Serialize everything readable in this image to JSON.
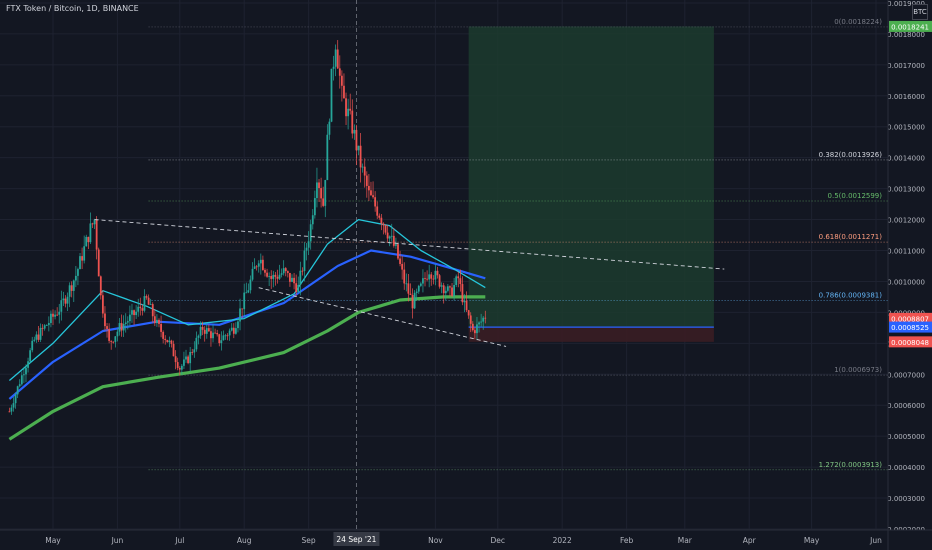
{
  "header": {
    "symbol": "FTX Token / Bitcoin, 1D, BINANCE",
    "currency": "BTC"
  },
  "colors": {
    "bg": "#131722",
    "grid": "#1e2230",
    "up": "#26a69a",
    "down": "#ef5350",
    "ma_teal": "#26c6da",
    "ma_blue": "#2962ff",
    "ma_green": "#4caf50",
    "target_zone": "#1c3b2e",
    "stop_zone": "#3a1d24"
  },
  "chart_data": {
    "type": "candlestick",
    "y_scale": "linear",
    "ylim": [
      0.0002,
      0.002
    ],
    "y_ticks": [
      "0.0019000",
      "0.0018000",
      "0.0017000",
      "0.0016000",
      "0.0015000",
      "0.0014000",
      "0.0013000",
      "0.0012000",
      "0.0011000",
      "0.0010000",
      "0.0009000",
      "0.0008000",
      "0.0007000",
      "0.0006000",
      "0.0005000",
      "0.0004000",
      "0.0003000",
      "0.0002000"
    ],
    "y_tick_values": [
      0.0019,
      0.0018,
      0.0017,
      0.0016,
      0.0015,
      0.0014,
      0.0013,
      0.0012,
      0.0011,
      0.001,
      0.0009,
      0.0008,
      0.0007,
      0.0006,
      0.0005,
      0.0004,
      0.0003,
      0.0002
    ],
    "x_ticks": [
      "May",
      "Jun",
      "Jul",
      "Aug",
      "Sep",
      "24 Sep '21",
      "Nov",
      "Dec",
      "2022",
      "Feb",
      "Mar",
      "Apr",
      "May",
      "Jun"
    ],
    "x_tick_dates": [
      "2021-05-01",
      "2021-06-01",
      "2021-07-01",
      "2021-08-01",
      "2021-09-01",
      "2021-09-24",
      "2021-11-01",
      "2021-12-01",
      "2022-01-01",
      "2022-02-01",
      "2022-03-01",
      "2022-04-01",
      "2022-05-01",
      "2022-06-01"
    ],
    "crosshair_date": "2021-09-24",
    "price_path": [
      [
        "2021-04-10",
        0.00058
      ],
      [
        "2021-04-22",
        0.00081
      ],
      [
        "2021-05-05",
        0.00092
      ],
      [
        "2021-05-12",
        0.00102
      ],
      [
        "2021-05-19",
        0.00117
      ],
      [
        "2021-05-21",
        0.0012
      ],
      [
        "2021-05-24",
        0.00095
      ],
      [
        "2021-05-28",
        0.0008
      ],
      [
        "2021-06-02",
        0.00085
      ],
      [
        "2021-06-10",
        0.0009
      ],
      [
        "2021-06-15",
        0.00094
      ],
      [
        "2021-06-20",
        0.00086
      ],
      [
        "2021-06-26",
        0.0008
      ],
      [
        "2021-07-01",
        0.00072
      ],
      [
        "2021-07-05",
        0.00075
      ],
      [
        "2021-07-12",
        0.00085
      ],
      [
        "2021-07-20",
        0.00081
      ],
      [
        "2021-07-27",
        0.00085
      ],
      [
        "2021-08-03",
        0.00098
      ],
      [
        "2021-08-08",
        0.00108
      ],
      [
        "2021-08-14",
        0.00101
      ],
      [
        "2021-08-20",
        0.00103
      ],
      [
        "2021-08-27",
        0.00098
      ],
      [
        "2021-09-02",
        0.00118
      ],
      [
        "2021-09-05",
        0.00135
      ],
      [
        "2021-09-08",
        0.00125
      ],
      [
        "2021-09-12",
        0.00165
      ],
      [
        "2021-09-14",
        0.00178
      ],
      [
        "2021-09-17",
        0.0016
      ],
      [
        "2021-09-22",
        0.0015
      ],
      [
        "2021-09-26",
        0.00138
      ],
      [
        "2021-09-30",
        0.00128
      ],
      [
        "2021-10-05",
        0.00122
      ],
      [
        "2021-10-09",
        0.00116
      ],
      [
        "2021-10-13",
        0.0011
      ],
      [
        "2021-10-17",
        0.001
      ],
      [
        "2021-10-21",
        0.00093
      ],
      [
        "2021-10-25",
        0.00098
      ],
      [
        "2021-10-29",
        0.00104
      ],
      [
        "2021-11-03",
        0.001
      ],
      [
        "2021-11-08",
        0.00096
      ],
      [
        "2021-11-12",
        0.00101
      ],
      [
        "2021-11-15",
        0.00092
      ],
      [
        "2021-11-19",
        0.00084
      ],
      [
        "2021-11-22",
        0.00086
      ],
      [
        "2021-11-25",
        0.00089
      ]
    ],
    "ma_fast": [
      [
        "2021-04-10",
        0.00068
      ],
      [
        "2021-05-01",
        0.0008
      ],
      [
        "2021-05-25",
        0.00097
      ],
      [
        "2021-06-15",
        0.00092
      ],
      [
        "2021-07-05",
        0.00086
      ],
      [
        "2021-08-01",
        0.00088
      ],
      [
        "2021-08-25",
        0.00096
      ],
      [
        "2021-09-10",
        0.00112
      ],
      [
        "2021-09-25",
        0.0012
      ],
      [
        "2021-10-10",
        0.00118
      ],
      [
        "2021-10-25",
        0.0011
      ],
      [
        "2021-11-10",
        0.00104
      ],
      [
        "2021-11-25",
        0.00098
      ]
    ],
    "ma_mid": [
      [
        "2021-04-10",
        0.00062
      ],
      [
        "2021-05-01",
        0.00074
      ],
      [
        "2021-05-25",
        0.00084
      ],
      [
        "2021-06-20",
        0.00087
      ],
      [
        "2021-07-20",
        0.00086
      ],
      [
        "2021-08-20",
        0.00093
      ],
      [
        "2021-09-15",
        0.00105
      ],
      [
        "2021-10-01",
        0.0011
      ],
      [
        "2021-10-20",
        0.00108
      ],
      [
        "2021-11-10",
        0.00104
      ],
      [
        "2021-11-25",
        0.00101
      ]
    ],
    "ma_slow": [
      [
        "2021-04-10",
        0.00049
      ],
      [
        "2021-05-01",
        0.00058
      ],
      [
        "2021-05-25",
        0.00066
      ],
      [
        "2021-06-20",
        0.00069
      ],
      [
        "2021-07-20",
        0.00072
      ],
      [
        "2021-08-20",
        0.00077
      ],
      [
        "2021-09-10",
        0.00084
      ],
      [
        "2021-09-25",
        0.0009
      ],
      [
        "2021-10-15",
        0.00094
      ],
      [
        "2021-11-05",
        0.00095
      ],
      [
        "2021-11-25",
        0.00095
      ]
    ],
    "fib_levels": [
      {
        "label": "0(0.0018224)",
        "value": 0.0018224,
        "color": "#787b86"
      },
      {
        "label": "0.382(0.0013926)",
        "value": 0.0013926,
        "color": "#d1d4dc"
      },
      {
        "label": "0.5(0.0012599)",
        "value": 0.0012599,
        "color": "#66bb6a"
      },
      {
        "label": "0.618(0.0011271)",
        "value": 0.0011271,
        "color": "#ff9e80"
      },
      {
        "label": "0.786(0.0009381)",
        "value": 0.0009381,
        "color": "#64b5f6"
      },
      {
        "label": "1(0.0006973)",
        "value": 0.0006973,
        "color": "#787b86"
      },
      {
        "label": "1.272(0.0003913)",
        "value": 0.0003913,
        "color": "#81c784"
      }
    ],
    "fib_start_date": "2021-06-16",
    "trendlines": [
      {
        "from": [
          "2021-05-21",
          0.0012
        ],
        "to": [
          "2022-03-20",
          0.00104
        ]
      },
      {
        "from": [
          "2021-08-08",
          0.00098
        ],
        "to": [
          "2021-12-05",
          0.00079
        ]
      }
    ],
    "position": {
      "start": "2021-11-17",
      "end": "2022-03-15",
      "entry": 0.0008525,
      "target": 0.0018241,
      "stop": 0.0008048
    },
    "price_labels": [
      {
        "text": "0.0018241",
        "value": 0.0018241,
        "color": "#4caf50"
      },
      {
        "text": "0.0008807",
        "value": 0.0008807,
        "color": "#ef5350"
      },
      {
        "text": "0.0008525",
        "value": 0.0008525,
        "color": "#2962ff"
      },
      {
        "text": "0.0008048",
        "value": 0.0008048,
        "color": "#ef5350"
      }
    ]
  }
}
